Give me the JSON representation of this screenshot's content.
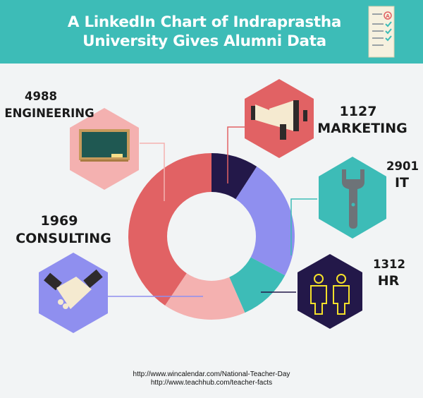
{
  "title_line1": "A LinkedIn Chart of Indraprastha",
  "title_line2": "University Gives Alumni Data",
  "chart_data": {
    "type": "pie",
    "donut": true,
    "categories": [
      "MARKETING",
      "IT",
      "HR",
      "CONSULTING",
      "ENGINEERING"
    ],
    "values": [
      1127,
      2901,
      1312,
      1969,
      4988
    ],
    "colors": {
      "MARKETING": "#231849",
      "IT": "#8f8fef",
      "HR": "#3dbcb7",
      "CONSULTING": "#f4b1b0",
      "ENGINEERING": "#e16264"
    },
    "labels": [
      {
        "value": "4988",
        "category": "ENGINEERING"
      },
      {
        "value": "1127",
        "category": "MARKETING"
      },
      {
        "value": "2901",
        "category": "IT"
      },
      {
        "value": "1969",
        "category": "CONSULTING"
      },
      {
        "value": "1312",
        "category": "HR"
      }
    ]
  },
  "icons": [
    {
      "name": "chalkboard-icon",
      "bg": "#f4b1b0"
    },
    {
      "name": "megaphone-icon",
      "bg": "#e16264"
    },
    {
      "name": "wrench-icon",
      "bg": "#3dbcb7"
    },
    {
      "name": "handshake-icon",
      "bg": "#8f8fef"
    },
    {
      "name": "people-icon",
      "bg": "#231849"
    }
  ],
  "sources": [
    "http://www.wincalendar.com/National-Teacher-Day",
    "http://www.teachhub.com/teacher-facts"
  ]
}
